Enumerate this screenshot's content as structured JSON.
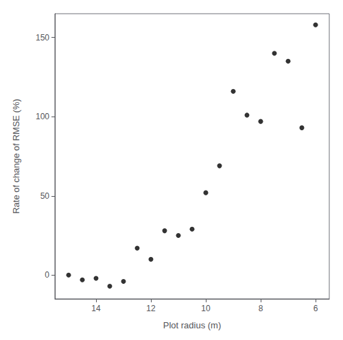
{
  "chart_data": {
    "type": "scatter",
    "x": [
      15,
      14.5,
      14,
      13.5,
      13,
      12.5,
      12,
      11.5,
      11,
      10.5,
      10,
      9.5,
      9,
      8.5,
      8,
      7.5,
      7,
      6.5,
      6
    ],
    "y": [
      0,
      -3,
      -2,
      -7,
      -4,
      17,
      10,
      28,
      25,
      29,
      52,
      69,
      116,
      101,
      97,
      140,
      135,
      93,
      158
    ],
    "xlabel": "Plot radius (m)",
    "ylabel": "Rate of change of RMSE (%)",
    "xlim": [
      15.5,
      5.5
    ],
    "ylim": [
      -15,
      165
    ],
    "xticks": [
      14,
      12,
      10,
      8,
      6
    ],
    "yticks": [
      0,
      50,
      100,
      150
    ],
    "color": "black",
    "grid": false
  }
}
